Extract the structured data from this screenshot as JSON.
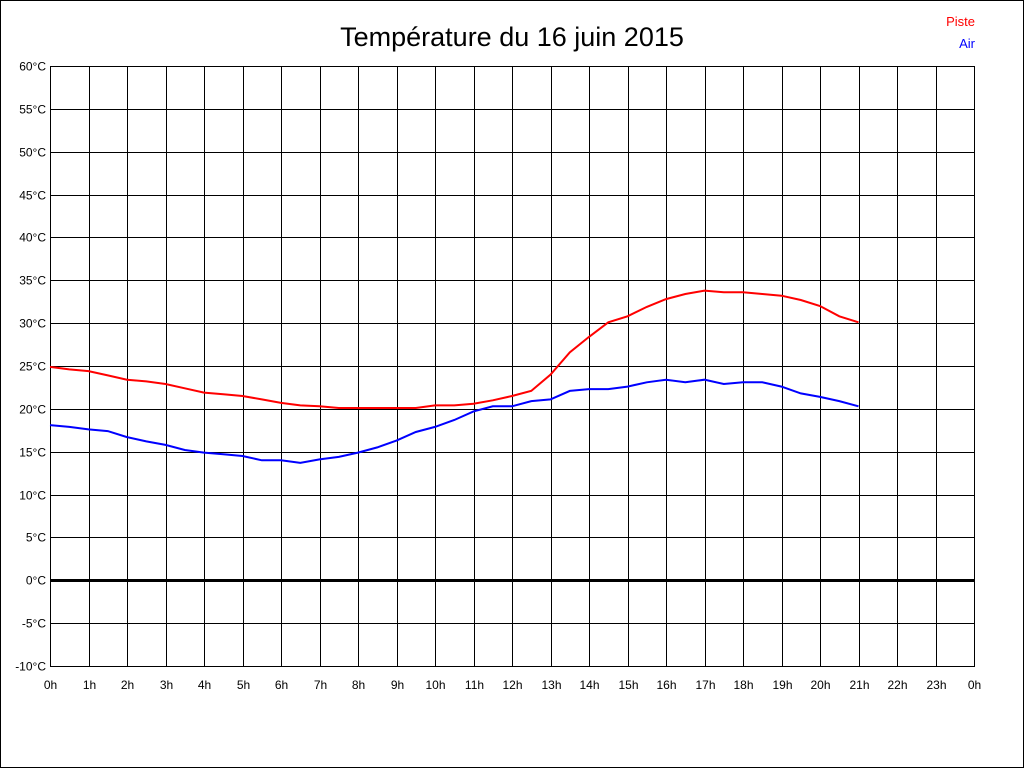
{
  "chart_data": {
    "type": "line",
    "title": "Température du 16 juin 2015",
    "xlabel": "",
    "ylabel": "",
    "xlim": [
      0,
      24
    ],
    "ylim": [
      -10,
      60
    ],
    "grid": true,
    "legend_placement": "top-right",
    "x_tick_labels": [
      "0h",
      "1h",
      "2h",
      "3h",
      "4h",
      "5h",
      "6h",
      "7h",
      "8h",
      "9h",
      "10h",
      "11h",
      "12h",
      "13h",
      "14h",
      "15h",
      "16h",
      "17h",
      "18h",
      "19h",
      "20h",
      "21h",
      "22h",
      "23h",
      "0h"
    ],
    "y_ticks": [
      -10,
      -5,
      0,
      5,
      10,
      15,
      20,
      25,
      30,
      35,
      40,
      45,
      50,
      55,
      60
    ],
    "y_tick_labels": [
      "-10°C",
      "-5°C",
      "0°C",
      "5°C",
      "10°C",
      "15°C",
      "20°C",
      "25°C",
      "30°C",
      "35°C",
      "40°C",
      "45°C",
      "50°C",
      "55°C",
      "60°C"
    ],
    "x": [
      0,
      0.5,
      1,
      1.5,
      2,
      2.5,
      3,
      3.5,
      4,
      4.5,
      5,
      5.5,
      6,
      6.5,
      7,
      7.5,
      8,
      8.5,
      9,
      9.5,
      10,
      10.5,
      11,
      11.5,
      12,
      12.5,
      13,
      13.5,
      14,
      14.5,
      15,
      15.5,
      16,
      16.5,
      17,
      17.5,
      18,
      18.5,
      19,
      19.5,
      20,
      20.5,
      21
    ],
    "series": [
      {
        "name": "Piste",
        "color": "#ff0000",
        "values": [
          24.9,
          24.6,
          24.4,
          23.9,
          23.4,
          23.2,
          22.9,
          22.4,
          21.9,
          21.7,
          21.5,
          21.1,
          20.7,
          20.4,
          20.3,
          20.1,
          20.1,
          20.1,
          20.1,
          20.1,
          20.4,
          20.4,
          20.6,
          21.0,
          21.5,
          22.1,
          24.0,
          26.6,
          28.4,
          30.1,
          30.8,
          31.9,
          32.8,
          33.4,
          33.8,
          33.6,
          33.6,
          33.4,
          33.2,
          32.7,
          32.0,
          30.8,
          30.1
        ]
      },
      {
        "name": "Air",
        "color": "#0000ff",
        "values": [
          18.1,
          17.9,
          17.6,
          17.4,
          16.7,
          16.2,
          15.8,
          15.2,
          14.9,
          14.7,
          14.5,
          14.0,
          14.0,
          13.7,
          14.1,
          14.4,
          14.9,
          15.5,
          16.3,
          17.3,
          17.9,
          18.7,
          19.7,
          20.3,
          20.3,
          20.9,
          21.1,
          22.1,
          22.3,
          22.3,
          22.6,
          23.1,
          23.4,
          23.1,
          23.4,
          22.9,
          23.1,
          23.1,
          22.6,
          21.8,
          21.4,
          20.9,
          20.3
        ]
      }
    ]
  }
}
